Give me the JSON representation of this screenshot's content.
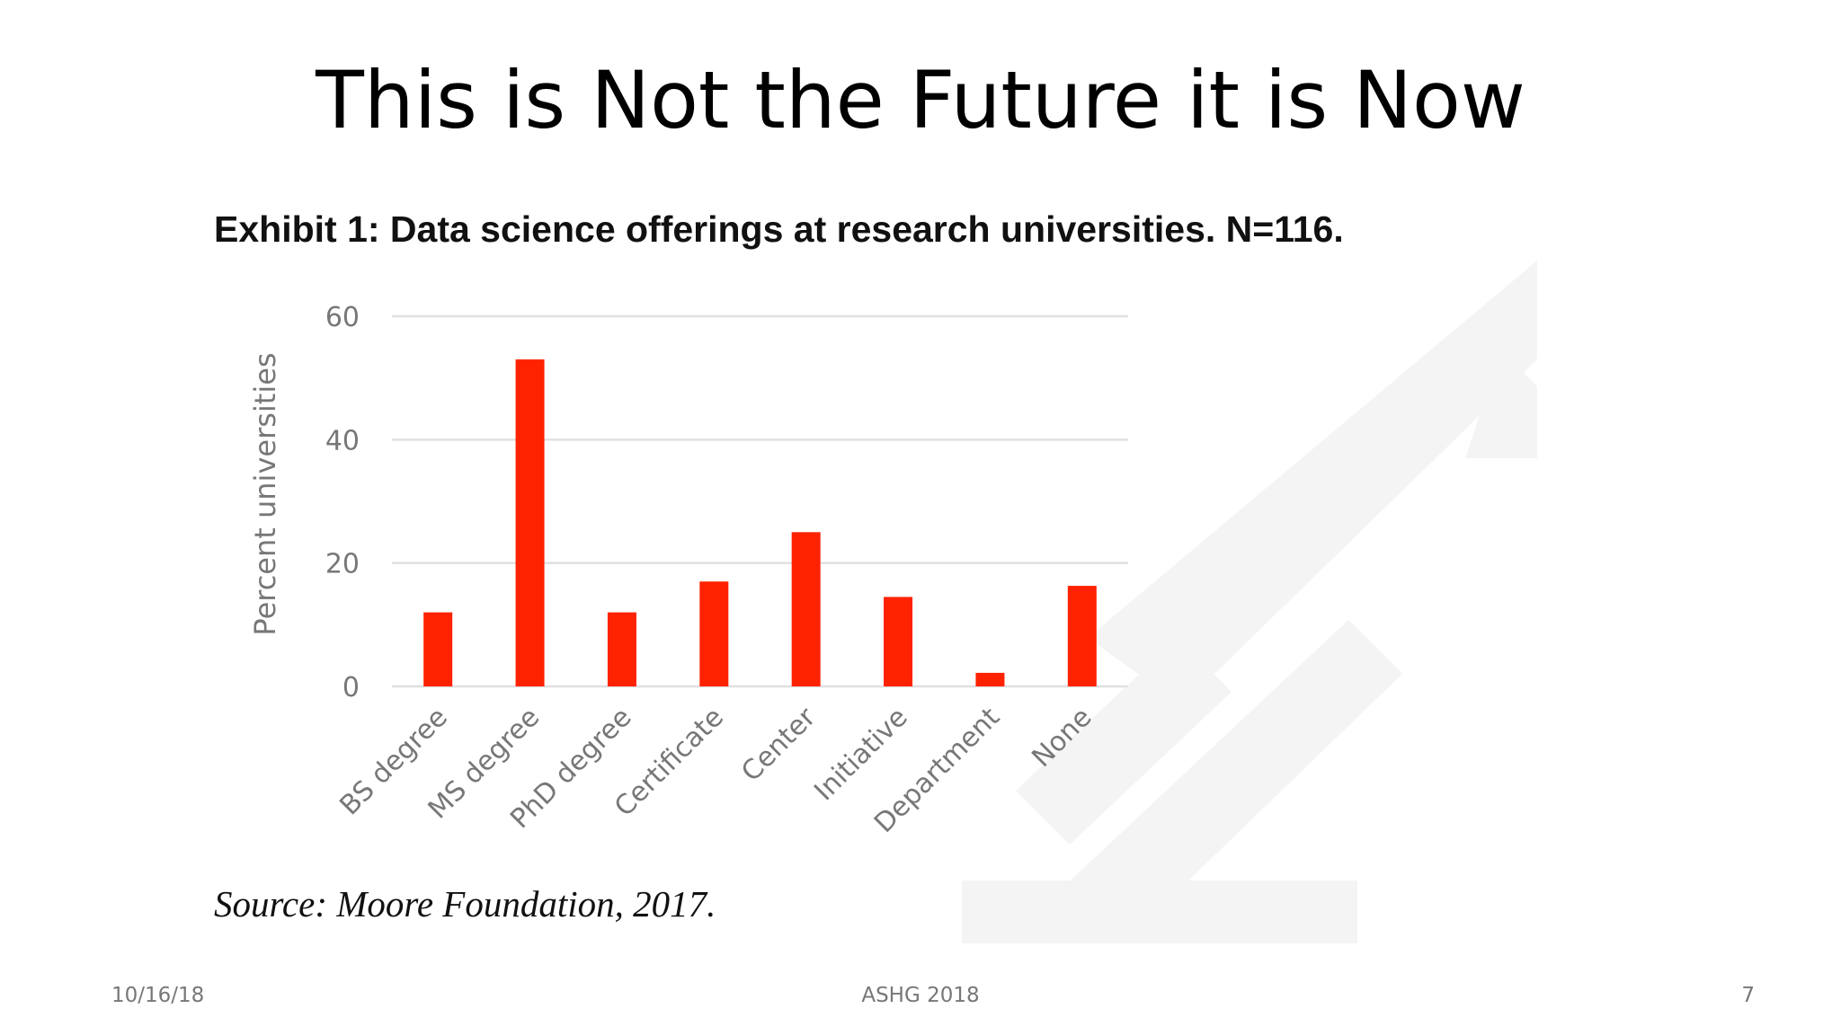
{
  "slide": {
    "title": "This is Not the Future it is Now",
    "caption": "Exhibit 1: Data science offerings at research universities. N=116.",
    "source": "Source: Moore Foundation, 2017.",
    "footer_date": "10/16/18",
    "footer_event": "ASHG 2018",
    "footer_page": "7"
  },
  "colors": {
    "bar": "#ff2200",
    "grid": "#e0e0e0",
    "tick_text": "#777777",
    "watermark": "#f4f4f4"
  },
  "chart_data": {
    "type": "bar",
    "title": "",
    "xlabel": "",
    "ylabel": "Percent universities",
    "ylim": [
      0,
      60
    ],
    "yticks": [
      0,
      20,
      40,
      60
    ],
    "grid": true,
    "legend": "none",
    "categories": [
      "BS degree",
      "MS degree",
      "PhD degree",
      "Certificate",
      "Center",
      "Initiative",
      "Department",
      "None"
    ],
    "values": [
      12,
      53,
      12,
      17,
      25,
      14.5,
      2.2,
      16.3
    ]
  }
}
